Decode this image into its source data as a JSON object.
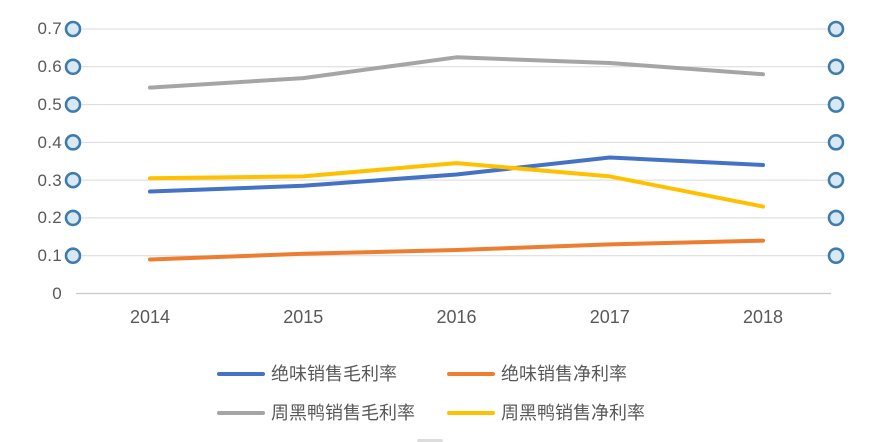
{
  "chart_data": {
    "type": "line",
    "title": "",
    "xlabel": "",
    "ylabel": "",
    "x_categories": [
      "2014",
      "2015",
      "2016",
      "2017",
      "2018"
    ],
    "y_tick_labels": [
      "0",
      "0.1",
      "0.2",
      "0.3",
      "0.4",
      "0.5",
      "0.6",
      "0.7"
    ],
    "y_tick_values": [
      0,
      0.1,
      0.2,
      0.3,
      0.4,
      0.5,
      0.6,
      0.7
    ],
    "ylim": [
      0,
      0.7
    ],
    "grid": "horizontal-only",
    "legend_position": "bottom",
    "series": [
      {
        "name": "绝味销售毛利率",
        "color": "#4472C4",
        "values": [
          0.27,
          0.285,
          0.315,
          0.36,
          0.34
        ]
      },
      {
        "name": "绝味销售净利率",
        "color": "#ED7D31",
        "values": [
          0.09,
          0.105,
          0.115,
          0.13,
          0.14
        ]
      },
      {
        "name": "周黑鸭销售毛利率",
        "color": "#A5A5A5",
        "values": [
          0.545,
          0.57,
          0.625,
          0.61,
          0.58
        ]
      },
      {
        "name": "周黑鸭销售净利率",
        "color": "#FFC000",
        "values": [
          0.305,
          0.31,
          0.345,
          0.31,
          0.23
        ]
      }
    ],
    "legend_rows": [
      [
        0,
        1
      ],
      [
        2,
        3
      ]
    ],
    "edge_markers": {
      "shape": "hollow-circle",
      "values": [
        0.1,
        0.2,
        0.3,
        0.4,
        0.5,
        0.6,
        0.7
      ],
      "sides": [
        "left",
        "right"
      ]
    }
  },
  "colors": {
    "background": "#FFFFFF",
    "gridline": "#D9D9D9",
    "axis_line": "#C9C9C9",
    "tick_text": "#595959",
    "legend_text": "#595959",
    "marker_stroke": "#3F7CAE",
    "marker_fill": "#D9E8F5"
  }
}
